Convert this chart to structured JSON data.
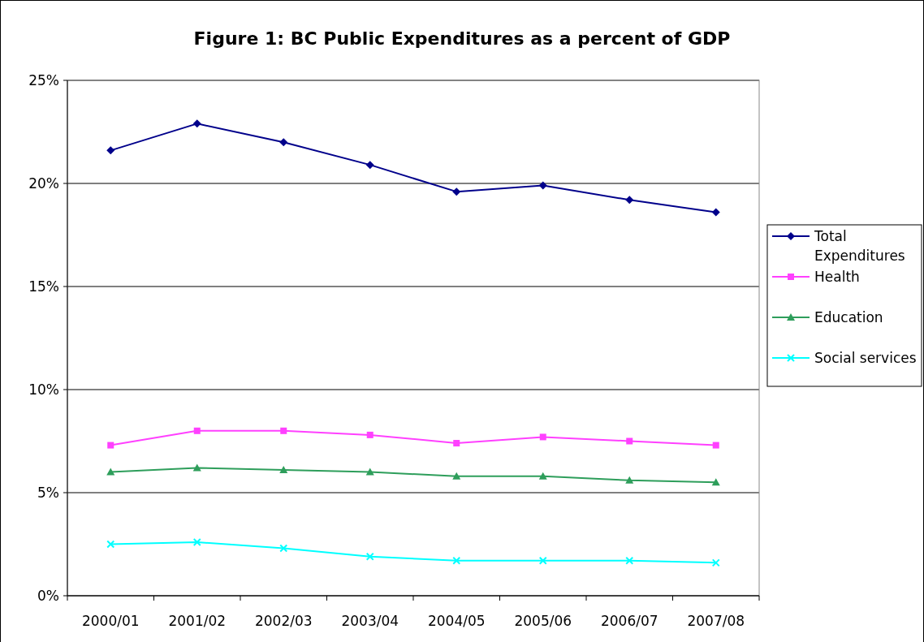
{
  "chart_data": {
    "type": "line",
    "title": "Figure 1: BC Public Expenditures as a percent of GDP",
    "categories": [
      "2000/01",
      "2001/02",
      "2002/03",
      "2003/04",
      "2004/05",
      "2005/06",
      "2006/07",
      "2007/08"
    ],
    "series": [
      {
        "name": "Total Expenditures",
        "color": "#00008b",
        "marker": "diamond",
        "values": [
          21.6,
          22.9,
          22.0,
          20.9,
          19.6,
          19.9,
          19.2,
          18.6
        ]
      },
      {
        "name": "Health",
        "color": "#ff40ff",
        "marker": "square",
        "values": [
          7.3,
          8.0,
          8.0,
          7.8,
          7.4,
          7.7,
          7.5,
          7.3
        ]
      },
      {
        "name": "Education",
        "color": "#2e9e5b",
        "marker": "triangle",
        "values": [
          6.0,
          6.2,
          6.1,
          6.0,
          5.8,
          5.8,
          5.6,
          5.5
        ]
      },
      {
        "name": "Social services",
        "color": "#00ffff",
        "marker": "cross",
        "values": [
          2.5,
          2.6,
          2.3,
          1.9,
          1.7,
          1.7,
          1.7,
          1.6
        ]
      }
    ],
    "ylim": [
      0,
      25
    ],
    "yticks": [
      {
        "value": 0,
        "label": "0%"
      },
      {
        "value": 5,
        "label": "5%"
      },
      {
        "value": 10,
        "label": "10%"
      },
      {
        "value": 15,
        "label": "15%"
      },
      {
        "value": 20,
        "label": "20%"
      },
      {
        "value": 25,
        "label": "25%"
      }
    ],
    "grid": "y",
    "legend": "right",
    "line_style": "solid"
  }
}
